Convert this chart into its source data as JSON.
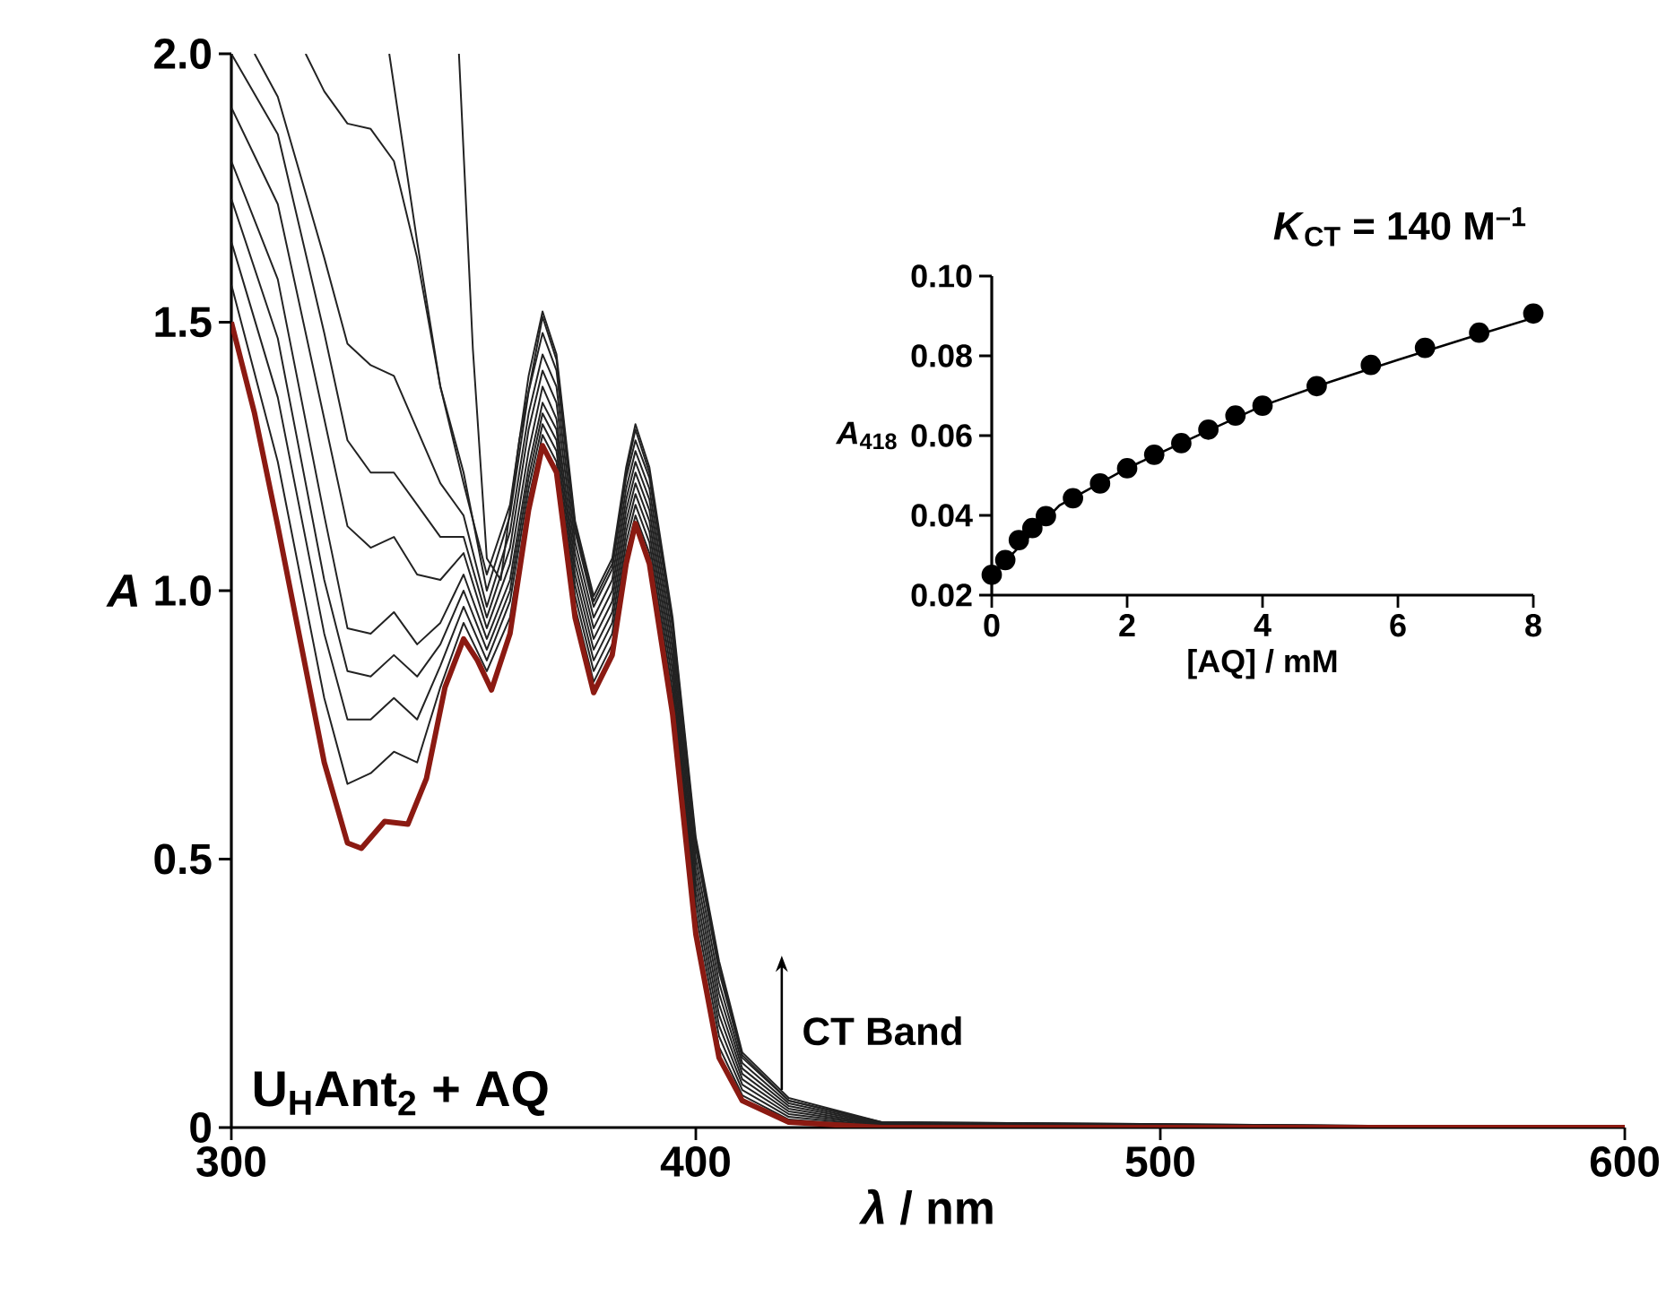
{
  "chart_data": [
    {
      "type": "line",
      "xlabel": "*λ* / nm",
      "ylabel": "A",
      "xlim": [
        300,
        600
      ],
      "ylim": [
        0,
        2.0
      ],
      "xticks": [
        300,
        400,
        500,
        600
      ],
      "yticks": [
        0,
        {
          "value": 0.5,
          "label": "0.5"
        },
        {
          "value": 1.0,
          "label": "1.0"
        },
        {
          "value": 1.5,
          "label": "1.5"
        },
        {
          "value": 2.0,
          "label": "2.0"
        }
      ],
      "marker": "none",
      "line_style": "solid",
      "annotations": [
        "U$_{H}$Ant$_{2}$ + AQ",
        "CT Band"
      ],
      "series": [
        {
          "color": "#222222",
          "x": [
            349,
            352,
            355,
            358,
            362,
            367,
            370,
            374,
            378,
            382,
            385,
            387,
            390,
            395,
            400,
            405,
            410,
            420,
            440,
            600
          ],
          "values": [
            2.0,
            1.45,
            1.06,
            1.02,
            1.28,
            1.51,
            1.43,
            1.12,
            0.98,
            1.05,
            1.22,
            1.3,
            1.22,
            0.94,
            0.53,
            0.3,
            0.135,
            0.05,
            0.01,
            0
          ]
        },
        {
          "color": "#222222",
          "x": [
            334,
            340,
            345,
            350,
            355,
            360,
            364,
            367,
            370,
            374,
            378,
            382,
            385,
            387,
            390,
            395,
            400,
            405,
            410,
            420,
            440,
            600
          ],
          "values": [
            2.0,
            1.65,
            1.38,
            1.2,
            1.03,
            1.16,
            1.4,
            1.52,
            1.44,
            1.13,
            0.99,
            1.06,
            1.23,
            1.31,
            1.23,
            0.95,
            0.54,
            0.31,
            0.14,
            0.055,
            0.01,
            0
          ]
        },
        {
          "color": "#222222",
          "x": [
            316,
            320,
            325,
            330,
            335,
            340,
            345,
            350,
            355,
            360,
            364,
            367,
            370,
            374,
            378,
            382,
            385,
            387,
            390,
            395,
            400,
            405,
            410,
            420,
            440,
            600
          ],
          "values": [
            2.0,
            1.93,
            1.87,
            1.86,
            1.8,
            1.62,
            1.38,
            1.22,
            1.0,
            1.14,
            1.37,
            1.48,
            1.41,
            1.11,
            0.97,
            1.04,
            1.21,
            1.28,
            1.21,
            0.93,
            0.52,
            0.29,
            0.13,
            0.05,
            0.009,
            0
          ]
        },
        {
          "color": "#222222",
          "x": [
            305,
            310,
            320,
            325,
            330,
            335,
            340,
            345,
            350,
            355,
            360,
            364,
            367,
            370,
            374,
            378,
            382,
            385,
            387,
            390,
            395,
            400,
            405,
            410,
            420,
            440,
            600
          ],
          "values": [
            2.0,
            1.92,
            1.62,
            1.46,
            1.42,
            1.4,
            1.3,
            1.2,
            1.14,
            0.97,
            1.11,
            1.33,
            1.44,
            1.38,
            1.09,
            0.95,
            1.02,
            1.19,
            1.26,
            1.19,
            0.91,
            0.5,
            0.27,
            0.12,
            0.045,
            0.008,
            0
          ]
        },
        {
          "color": "#222222",
          "x": [
            300,
            310,
            320,
            325,
            330,
            335,
            340,
            345,
            350,
            355,
            360,
            364,
            367,
            370,
            374,
            378,
            382,
            385,
            387,
            390,
            395,
            400,
            405,
            410,
            420,
            440,
            600
          ],
          "values": [
            2.0,
            1.85,
            1.48,
            1.28,
            1.22,
            1.22,
            1.16,
            1.1,
            1.1,
            0.95,
            1.08,
            1.3,
            1.41,
            1.35,
            1.07,
            0.93,
            1.0,
            1.17,
            1.24,
            1.17,
            0.89,
            0.48,
            0.25,
            0.11,
            0.04,
            0.007,
            0
          ]
        },
        {
          "color": "#222222",
          "x": [
            300,
            310,
            320,
            325,
            330,
            335,
            340,
            345,
            350,
            355,
            360,
            364,
            367,
            370,
            374,
            378,
            382,
            385,
            387,
            390,
            395,
            400,
            405,
            410,
            420,
            440,
            600
          ],
          "values": [
            1.9,
            1.72,
            1.32,
            1.12,
            1.08,
            1.1,
            1.03,
            1.02,
            1.07,
            0.93,
            1.05,
            1.26,
            1.38,
            1.32,
            1.05,
            0.91,
            0.98,
            1.15,
            1.22,
            1.15,
            0.87,
            0.46,
            0.23,
            0.1,
            0.035,
            0.006,
            0
          ]
        },
        {
          "color": "#222222",
          "x": [
            300,
            310,
            320,
            325,
            330,
            335,
            340,
            345,
            350,
            355,
            360,
            364,
            367,
            370,
            374,
            378,
            382,
            385,
            387,
            390,
            395,
            400,
            405,
            410,
            420,
            440,
            600
          ],
          "values": [
            1.8,
            1.58,
            1.14,
            0.93,
            0.92,
            0.96,
            0.9,
            0.94,
            1.03,
            0.91,
            1.02,
            1.23,
            1.35,
            1.3,
            1.03,
            0.89,
            0.96,
            1.13,
            1.2,
            1.13,
            0.85,
            0.44,
            0.21,
            0.09,
            0.03,
            0.005,
            0
          ]
        },
        {
          "color": "#222222",
          "x": [
            300,
            310,
            320,
            325,
            330,
            335,
            340,
            345,
            350,
            355,
            360,
            364,
            367,
            370,
            374,
            378,
            382,
            385,
            387,
            390,
            395,
            400,
            405,
            410,
            420,
            440,
            600
          ],
          "values": [
            1.73,
            1.47,
            1.02,
            0.85,
            0.84,
            0.88,
            0.84,
            0.9,
            1.0,
            0.89,
            1.0,
            1.21,
            1.33,
            1.28,
            1.01,
            0.87,
            0.94,
            1.11,
            1.18,
            1.11,
            0.83,
            0.42,
            0.19,
            0.08,
            0.025,
            0.004,
            0
          ]
        },
        {
          "color": "#222222",
          "x": [
            300,
            310,
            320,
            325,
            330,
            335,
            340,
            345,
            350,
            355,
            360,
            364,
            367,
            370,
            374,
            378,
            382,
            385,
            387,
            390,
            395,
            400,
            405,
            410,
            420,
            440,
            600
          ],
          "values": [
            1.65,
            1.36,
            0.92,
            0.76,
            0.76,
            0.8,
            0.76,
            0.86,
            0.97,
            0.87,
            0.98,
            1.19,
            1.31,
            1.26,
            0.99,
            0.85,
            0.92,
            1.09,
            1.16,
            1.09,
            0.81,
            0.4,
            0.17,
            0.07,
            0.02,
            0.003,
            0
          ]
        },
        {
          "color": "#222222",
          "x": [
            300,
            310,
            320,
            325,
            330,
            335,
            340,
            345,
            350,
            355,
            360,
            364,
            367,
            370,
            374,
            378,
            382,
            385,
            387,
            390,
            395,
            400,
            405,
            410,
            420,
            440,
            600
          ],
          "values": [
            1.57,
            1.24,
            0.8,
            0.64,
            0.66,
            0.7,
            0.68,
            0.82,
            0.94,
            0.85,
            0.95,
            1.17,
            1.29,
            1.24,
            0.97,
            0.83,
            0.9,
            1.07,
            1.14,
            1.07,
            0.79,
            0.38,
            0.15,
            0.06,
            0.015,
            0.002,
            0
          ]
        },
        {
          "color": "#8b1a12",
          "x": [
            300,
            305,
            310,
            315,
            320,
            325,
            328,
            333,
            338,
            342,
            346,
            350,
            353,
            356,
            360,
            364,
            367,
            370,
            374,
            378,
            382,
            385,
            387,
            390,
            395,
            400,
            405,
            410,
            420,
            440,
            600
          ],
          "values": [
            1.5,
            1.33,
            1.12,
            0.9,
            0.68,
            0.53,
            0.52,
            0.57,
            0.565,
            0.65,
            0.82,
            0.91,
            0.87,
            0.815,
            0.92,
            1.15,
            1.27,
            1.22,
            0.95,
            0.81,
            0.88,
            1.05,
            1.125,
            1.05,
            0.77,
            0.36,
            0.13,
            0.05,
            0.01,
            0.0,
            0.0
          ]
        }
      ]
    },
    {
      "type": "scatter",
      "title": "*K*$_{CT}$ = 140 M$^{–1}$",
      "xlabel": "[AQ] / mM",
      "ylabel": "*A*$_{418}$",
      "xlim": [
        0,
        8
      ],
      "ylim": [
        0.02,
        0.1
      ],
      "xticks": [
        0,
        2,
        4,
        6,
        8
      ],
      "yticks": [
        {
          "value": 0.02,
          "label": "0.02"
        },
        {
          "value": 0.04,
          "label": "0.04"
        },
        {
          "value": 0.06,
          "label": "0.06"
        },
        {
          "value": 0.08,
          "label": "0.08"
        },
        {
          "value": 0.1,
          "label": "0.10"
        }
      ],
      "series": [
        {
          "type": "line",
          "marker": "none",
          "color": "#000000",
          "x": [
            0,
            1,
            2,
            3,
            4,
            5,
            6,
            7,
            8
          ],
          "values": [
            0.025,
            0.0425,
            0.0518,
            0.0597,
            0.0675,
            0.0735,
            0.079,
            0.0843,
            0.0895
          ]
        },
        {
          "type": "scatter",
          "marker": "circle",
          "color": "#000000",
          "x": [
            0,
            0.2,
            0.4,
            0.6,
            0.8,
            1.2,
            1.6,
            2.0,
            2.4,
            2.8,
            3.2,
            3.6,
            4.0,
            4.8,
            5.6,
            6.4,
            7.2,
            8.0
          ],
          "values": [
            0.0251,
            0.0288,
            0.0338,
            0.0368,
            0.0398,
            0.0443,
            0.048,
            0.0518,
            0.0552,
            0.0581,
            0.0615,
            0.065,
            0.0675,
            0.0724,
            0.0777,
            0.082,
            0.0858,
            0.0906
          ]
        }
      ]
    }
  ]
}
